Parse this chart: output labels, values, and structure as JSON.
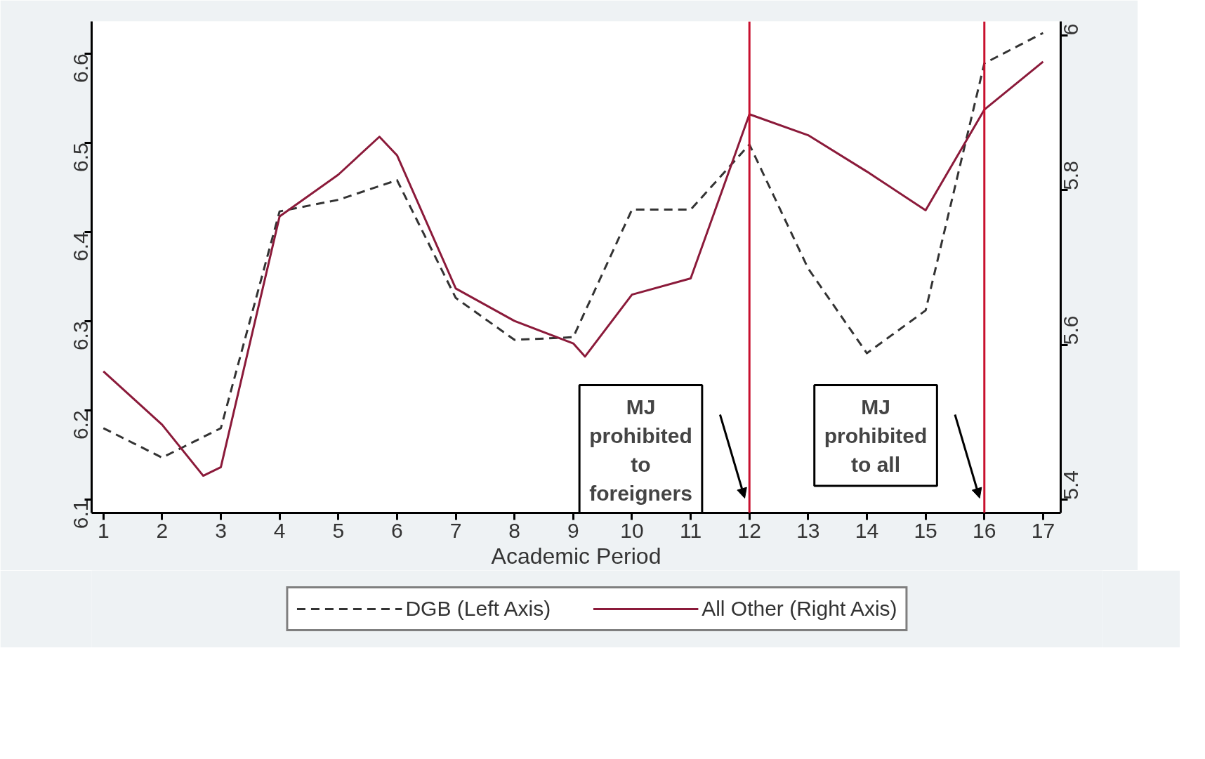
{
  "chart_data": {
    "type": "line",
    "xlabel": "Academic Period",
    "xlim": [
      0.8,
      17.3
    ],
    "xticks": [
      1,
      2,
      3,
      4,
      5,
      6,
      7,
      8,
      9,
      10,
      11,
      12,
      13,
      14,
      15,
      16,
      17
    ],
    "ylim": [
      6.085,
      6.636
    ],
    "yticks": [
      6.1,
      6.2,
      6.3,
      6.4,
      6.5,
      6.6
    ],
    "y2lim": [
      5.383,
      6.018
    ],
    "y2ticks": [
      5.4,
      5.6,
      5.8,
      6
    ],
    "legend": "bottom",
    "grid": false,
    "series": [
      {
        "name": "DGB (Left Axis)",
        "color": "#333333",
        "line_style": "dashed",
        "x": [
          1,
          2,
          3,
          4,
          5,
          6,
          7,
          8,
          9,
          10,
          11,
          12,
          13,
          14,
          15,
          16,
          17
        ],
        "values": [
          6.18,
          6.147,
          6.18,
          6.423,
          6.436,
          6.458,
          6.326,
          6.279,
          6.282,
          6.425,
          6.425,
          6.498,
          6.359,
          6.264,
          6.312,
          6.589,
          6.623
        ]
      },
      {
        "name": "All Other (Right Axis)",
        "color": "#8b1a3a",
        "line_style": "solid",
        "axis": "y2",
        "x": [
          1,
          2,
          2.7,
          3,
          4,
          5,
          5.7,
          6,
          7,
          8,
          9,
          9.2,
          10,
          11,
          12,
          13,
          14,
          15,
          16,
          17
        ],
        "values": [
          5.566,
          5.497,
          5.431,
          5.442,
          5.766,
          5.82,
          5.869,
          5.845,
          5.673,
          5.631,
          5.602,
          5.585,
          5.665,
          5.686,
          5.898,
          5.871,
          5.824,
          5.774,
          5.904,
          5.966
        ]
      }
    ],
    "ref_lines": [
      {
        "axis": "x",
        "value": 12,
        "label": "MJ prohibited to foreigners",
        "color": "#c8102e"
      },
      {
        "axis": "x",
        "value": 16,
        "label": "MJ prohibited to all",
        "color": "#c8102e"
      }
    ]
  }
}
